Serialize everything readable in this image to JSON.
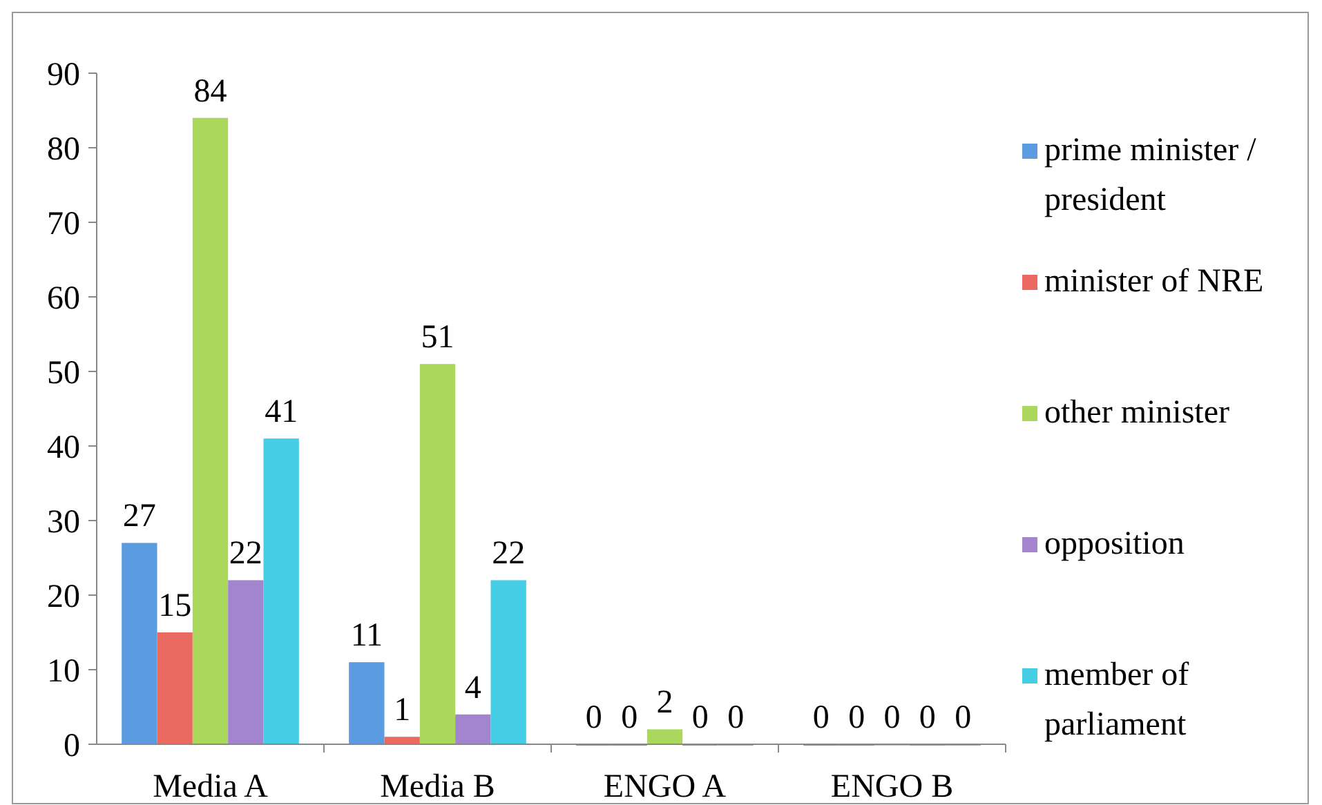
{
  "chart_data": {
    "type": "bar",
    "categories": [
      "Media A",
      "Media B",
      "ENGO A",
      "ENGO B"
    ],
    "series": [
      {
        "name": "prime minister / president",
        "color": "#5b9be0",
        "values": [
          27,
          11,
          0,
          0
        ]
      },
      {
        "name": "minister of NRE",
        "color": "#ea6a62",
        "values": [
          15,
          1,
          0,
          0
        ]
      },
      {
        "name": "other minister",
        "color": "#abd85c",
        "values": [
          84,
          51,
          2,
          0
        ]
      },
      {
        "name": "opposition",
        "color": "#a285cc",
        "values": [
          22,
          4,
          0,
          0
        ]
      },
      {
        "name": "member of parliament",
        "color": "#45cde6",
        "values": [
          41,
          22,
          0,
          0
        ]
      }
    ],
    "ylim": [
      0,
      90
    ],
    "yticks": [
      0,
      10,
      20,
      30,
      40,
      50,
      60,
      70,
      80,
      90
    ],
    "data_labels": true,
    "legend": "right",
    "grid": false
  }
}
